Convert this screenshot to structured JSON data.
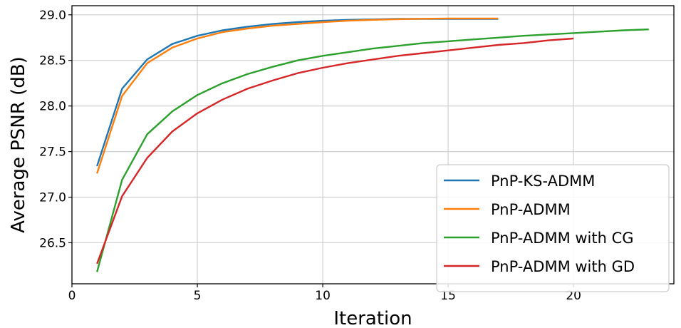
{
  "chart_data": {
    "type": "line",
    "title": "",
    "xlabel": "Iteration",
    "ylabel": "Average PSNR (dB)",
    "xlim": [
      0,
      24
    ],
    "ylim": [
      26.05,
      29.1
    ],
    "xticks": [
      0,
      5,
      10,
      15,
      20
    ],
    "yticks": [
      26.5,
      27.0,
      27.5,
      28.0,
      28.5,
      29.0
    ],
    "xtick_labels": [
      "0",
      "5",
      "10",
      "15",
      "20"
    ],
    "ytick_labels": [
      "26.5",
      "27.0",
      "27.5",
      "28.0",
      "28.5",
      "29.0"
    ],
    "grid": true,
    "legend_position": "lower-right",
    "series": [
      {
        "name": "PnP-KS-ADMM",
        "color": "#1f77b4",
        "x": [
          1,
          2,
          3,
          4,
          5,
          6,
          7,
          8,
          9,
          10,
          11,
          12,
          13,
          14,
          15,
          16,
          17
        ],
        "y": [
          27.34,
          28.19,
          28.51,
          28.68,
          28.77,
          28.83,
          28.87,
          28.9,
          28.92,
          28.935,
          28.945,
          28.95,
          28.955,
          28.955,
          28.955,
          28.955,
          28.955
        ]
      },
      {
        "name": "PnP-ADMM",
        "color": "#ff7f0e",
        "x": [
          1,
          2,
          3,
          4,
          5,
          6,
          7,
          8,
          9,
          10,
          11,
          12,
          13,
          14,
          15,
          16,
          17
        ],
        "y": [
          27.26,
          28.11,
          28.47,
          28.64,
          28.74,
          28.81,
          28.85,
          28.88,
          28.9,
          28.92,
          28.935,
          28.945,
          28.952,
          28.957,
          28.96,
          28.96,
          28.96
        ]
      },
      {
        "name": "PnP-ADMM with CG",
        "color": "#2ca02c",
        "x": [
          1,
          2,
          3,
          4,
          5,
          6,
          7,
          8,
          9,
          10,
          11,
          12,
          13,
          14,
          15,
          16,
          17,
          18,
          19,
          20,
          21,
          22,
          23
        ],
        "y": [
          26.18,
          27.19,
          27.69,
          27.94,
          28.12,
          28.25,
          28.35,
          28.43,
          28.5,
          28.55,
          28.59,
          28.63,
          28.66,
          28.69,
          28.71,
          28.73,
          28.75,
          28.77,
          28.785,
          28.8,
          28.815,
          28.83,
          28.84
        ]
      },
      {
        "name": "PnP-ADMM with GD",
        "color": "#d62728",
        "x": [
          1,
          2,
          3,
          4,
          5,
          6,
          7,
          8,
          9,
          10,
          11,
          12,
          13,
          14,
          15,
          16,
          17,
          18,
          19,
          20
        ],
        "y": [
          26.27,
          27.01,
          27.43,
          27.72,
          27.92,
          28.07,
          28.19,
          28.28,
          28.36,
          28.42,
          28.47,
          28.51,
          28.55,
          28.58,
          28.61,
          28.64,
          28.67,
          28.69,
          28.72,
          28.74
        ]
      }
    ]
  }
}
